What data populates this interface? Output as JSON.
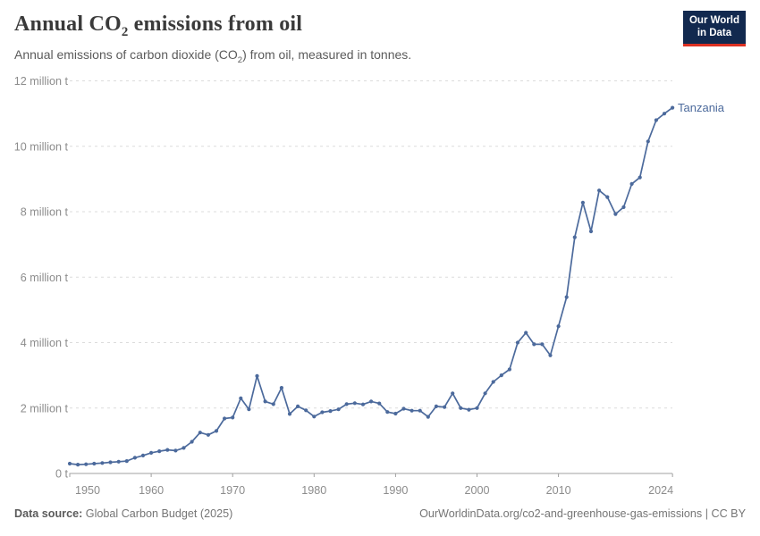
{
  "header": {
    "title": {
      "prefix": "Annual CO",
      "subscript": "2",
      "suffix": " emissions from oil"
    },
    "subtitle": {
      "prefix": "Annual emissions of carbon dioxide (CO",
      "subscript": "2",
      "suffix": ") from oil, measured in tonnes."
    },
    "logo": {
      "line1": "Our World",
      "line2": "in Data",
      "bg": "#12294f",
      "accent": "#dc3022"
    }
  },
  "footer": {
    "source_label": "Data source:",
    "source_value": " Global Carbon Budget (2025)",
    "credit": "OurWorldinData.org/co2-and-greenhouse-gas-emissions | CC BY"
  },
  "chart_data": {
    "type": "line",
    "title": "Annual CO₂ emissions from oil",
    "subtitle": "Annual emissions of carbon dioxide (CO₂) from oil, measured in tonnes.",
    "unit": "tonnes",
    "values_unit": "million tonnes",
    "entity_label": "Tanzania",
    "grid": "horizontal-dashed",
    "legend": "end-of-line-label",
    "ylim": [
      0,
      12
    ],
    "xlim": [
      1950,
      2024
    ],
    "colors": {
      "line": "#4C6A9C",
      "grid": "#dcdcdc",
      "axis": "#a0a0a0",
      "tick_label": "#8c8c8c"
    },
    "yticks": [
      {
        "value": 0,
        "label": "0 t"
      },
      {
        "value": 2,
        "label": "2 million t"
      },
      {
        "value": 4,
        "label": "4 million t"
      },
      {
        "value": 6,
        "label": "6 million t"
      },
      {
        "value": 8,
        "label": "8 million t"
      },
      {
        "value": 10,
        "label": "10 million t"
      },
      {
        "value": 12,
        "label": "12 million t"
      }
    ],
    "xticks": [
      {
        "value": 1950,
        "label": "1950"
      },
      {
        "value": 1960,
        "label": "1960"
      },
      {
        "value": 1970,
        "label": "1970"
      },
      {
        "value": 1980,
        "label": "1980"
      },
      {
        "value": 1990,
        "label": "1990"
      },
      {
        "value": 2000,
        "label": "2000"
      },
      {
        "value": 2010,
        "label": "2010"
      },
      {
        "value": 2024,
        "label": "2024"
      }
    ],
    "x": [
      1950,
      1951,
      1952,
      1953,
      1954,
      1955,
      1956,
      1957,
      1958,
      1959,
      1960,
      1961,
      1962,
      1963,
      1964,
      1965,
      1966,
      1967,
      1968,
      1969,
      1970,
      1971,
      1972,
      1973,
      1974,
      1975,
      1976,
      1977,
      1978,
      1979,
      1980,
      1981,
      1982,
      1983,
      1984,
      1985,
      1986,
      1987,
      1988,
      1989,
      1990,
      1991,
      1992,
      1993,
      1994,
      1995,
      1996,
      1997,
      1998,
      1999,
      2000,
      2001,
      2002,
      2003,
      2004,
      2005,
      2006,
      2007,
      2008,
      2009,
      2010,
      2011,
      2012,
      2013,
      2014,
      2015,
      2016,
      2017,
      2018,
      2019,
      2020,
      2021,
      2022,
      2023,
      2024
    ],
    "series": [
      {
        "name": "Tanzania",
        "color": "#4C6A9C",
        "values": [
          0.3,
          0.27,
          0.28,
          0.3,
          0.32,
          0.34,
          0.36,
          0.38,
          0.48,
          0.55,
          0.63,
          0.68,
          0.72,
          0.7,
          0.78,
          0.97,
          1.25,
          1.18,
          1.3,
          1.68,
          1.71,
          2.3,
          1.96,
          2.98,
          2.2,
          2.12,
          2.62,
          1.82,
          2.05,
          1.93,
          1.74,
          1.87,
          1.91,
          1.96,
          2.12,
          2.15,
          2.11,
          2.2,
          2.14,
          1.88,
          1.83,
          1.98,
          1.92,
          1.92,
          1.73,
          2.05,
          2.03,
          2.45,
          2.0,
          1.95,
          2.0,
          2.45,
          2.8,
          3.0,
          3.18,
          4.0,
          4.3,
          3.95,
          3.95,
          3.61,
          4.5,
          5.39,
          7.22,
          8.28,
          7.4,
          8.65,
          8.45,
          7.93,
          8.14,
          8.85,
          9.05,
          10.15,
          10.8,
          11.0,
          11.18
        ]
      }
    ]
  }
}
